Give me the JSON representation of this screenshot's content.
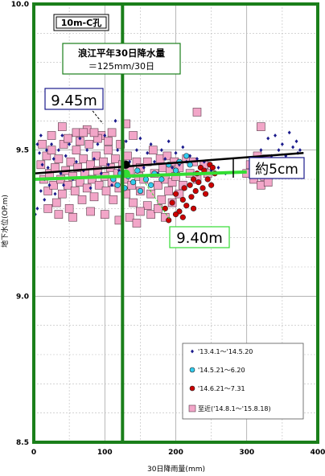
{
  "chart_data": {
    "type": "scatter",
    "title": "10m-C孔",
    "xlabel": "30日降雨量(mm)",
    "ylabel": "地下水位(OP.m)",
    "xlim": [
      0,
      400
    ],
    "ylim": [
      8.5,
      10.0
    ],
    "x_ticks": [
      "0",
      "100",
      "200",
      "300",
      "400"
    ],
    "y_ticks": [
      "8.5",
      "9.0",
      "9.5",
      "10.0"
    ],
    "grid": true,
    "legend_position": "bottom-right",
    "reference_line": {
      "x": 125,
      "label_line1": "浪江平年30日降水量",
      "label_line2": "＝125mm/30日",
      "color": "#1a7f1a"
    },
    "annotations": {
      "high_value": "9.45m",
      "low_value": "9.40m",
      "difference": "約5cm"
    },
    "trend_lines": [
      {
        "name": "black",
        "color": "#000000",
        "points": [
          [
            0,
            9.42
          ],
          [
            380,
            9.49
          ]
        ]
      },
      {
        "name": "green",
        "color": "#33dd33",
        "points": [
          [
            0,
            9.4
          ],
          [
            300,
            9.425
          ]
        ]
      }
    ],
    "highlight_points": [
      {
        "x": 130,
        "y": 9.45,
        "color": "#000000"
      },
      {
        "x": 130,
        "y": 9.42,
        "color": "#33dd33"
      }
    ],
    "series": [
      {
        "name": "'13.4.1～'14.5.20",
        "marker": "diamond",
        "color": "#1a1a8c",
        "points": [
          [
            5,
            9.52
          ],
          [
            8,
            9.49
          ],
          [
            10,
            9.55
          ],
          [
            12,
            9.45
          ],
          [
            15,
            9.4
          ],
          [
            18,
            9.5
          ],
          [
            20,
            9.44
          ],
          [
            22,
            9.38
          ],
          [
            25,
            9.52
          ],
          [
            28,
            9.47
          ],
          [
            30,
            9.35
          ],
          [
            35,
            9.5
          ],
          [
            38,
            9.42
          ],
          [
            40,
            9.55
          ],
          [
            42,
            9.38
          ],
          [
            45,
            9.48
          ],
          [
            50,
            9.52
          ],
          [
            55,
            9.4
          ],
          [
            60,
            9.46
          ],
          [
            65,
            9.54
          ],
          [
            70,
            9.43
          ],
          [
            75,
            9.5
          ],
          [
            80,
            9.37
          ],
          [
            85,
            9.47
          ],
          [
            90,
            9.52
          ],
          [
            95,
            9.42
          ],
          [
            100,
            9.55
          ],
          [
            105,
            9.45
          ],
          [
            110,
            9.38
          ],
          [
            115,
            9.6
          ],
          [
            118,
            9.5
          ],
          [
            120,
            9.43
          ],
          [
            125,
            9.48
          ],
          [
            130,
            9.53
          ],
          [
            135,
            9.46
          ],
          [
            140,
            9.41
          ],
          [
            145,
            9.5
          ],
          [
            150,
            9.54
          ],
          [
            155,
            9.44
          ],
          [
            160,
            9.49
          ],
          [
            165,
            9.52
          ],
          [
            170,
            9.46
          ],
          [
            175,
            9.42
          ],
          [
            180,
            9.5
          ],
          [
            185,
            9.47
          ],
          [
            190,
            9.53
          ],
          [
            195,
            9.44
          ],
          [
            200,
            9.49
          ],
          [
            205,
            9.45
          ],
          [
            210,
            9.51
          ],
          [
            215,
            9.46
          ],
          [
            220,
            9.48
          ],
          [
            225,
            9.42
          ],
          [
            230,
            9.47
          ],
          [
            235,
            9.44
          ],
          [
            240,
            9.46
          ],
          [
            250,
            9.43
          ],
          [
            260,
            9.44
          ],
          [
            270,
            9.42
          ],
          [
            320,
            9.5
          ],
          [
            330,
            9.54
          ],
          [
            335,
            9.48
          ],
          [
            340,
            9.55
          ],
          [
            345,
            9.5
          ],
          [
            350,
            9.52
          ],
          [
            355,
            9.48
          ],
          [
            360,
            9.56
          ],
          [
            365,
            9.51
          ],
          [
            370,
            9.53
          ],
          [
            372,
            9.49
          ],
          [
            375,
            9.5
          ],
          [
            2,
            9.28
          ],
          [
            5,
            9.3
          ],
          [
            10,
            9.36
          ],
          [
            15,
            9.33
          ],
          [
            378,
            9.45
          ]
        ]
      },
      {
        "name": "'14.5.21～6.20",
        "marker": "circle",
        "color": "#33ccee",
        "points": [
          [
            112,
            9.4
          ],
          [
            118,
            9.38
          ],
          [
            122,
            9.42
          ],
          [
            128,
            9.37
          ],
          [
            133,
            9.41
          ],
          [
            140,
            9.39
          ],
          [
            146,
            9.43
          ],
          [
            150,
            9.36
          ],
          [
            158,
            9.4
          ],
          [
            165,
            9.38
          ],
          [
            170,
            9.42
          ],
          [
            180,
            9.4
          ],
          [
            190,
            9.45
          ],
          [
            200,
            9.43
          ],
          [
            205,
            9.46
          ],
          [
            215,
            9.48
          ],
          [
            220,
            9.45
          ]
        ]
      },
      {
        "name": "'14.6.21～7.31",
        "marker": "circle",
        "color": "#cc0000",
        "points": [
          [
            185,
            9.3
          ],
          [
            190,
            9.26
          ],
          [
            195,
            9.32
          ],
          [
            200,
            9.35
          ],
          [
            205,
            9.29
          ],
          [
            210,
            9.33
          ],
          [
            212,
            9.37
          ],
          [
            215,
            9.31
          ],
          [
            220,
            9.38
          ],
          [
            222,
            9.34
          ],
          [
            225,
            9.4
          ],
          [
            228,
            9.36
          ],
          [
            230,
            9.42
          ],
          [
            232,
            9.39
          ],
          [
            235,
            9.44
          ],
          [
            238,
            9.37
          ],
          [
            240,
            9.43
          ],
          [
            242,
            9.35
          ],
          [
            245,
            9.4
          ],
          [
            248,
            9.45
          ],
          [
            250,
            9.38
          ],
          [
            252,
            9.44
          ],
          [
            255,
            9.42
          ],
          [
            225,
            9.3
          ],
          [
            200,
            9.28
          ],
          [
            210,
            9.27
          ]
        ]
      },
      {
        "name": "至近('14.8.1～'15.8.18)",
        "marker": "square",
        "color": "#f2a6c8",
        "points": [
          [
            10,
            9.45
          ],
          [
            14,
            9.4
          ],
          [
            18,
            9.48
          ],
          [
            20,
            9.36
          ],
          [
            22,
            9.42
          ],
          [
            25,
            9.5
          ],
          [
            28,
            9.38
          ],
          [
            30,
            9.44
          ],
          [
            32,
            9.32
          ],
          [
            35,
            9.47
          ],
          [
            38,
            9.4
          ],
          [
            40,
            9.35
          ],
          [
            42,
            9.52
          ],
          [
            45,
            9.43
          ],
          [
            48,
            9.38
          ],
          [
            50,
            9.3
          ],
          [
            52,
            9.46
          ],
          [
            55,
            9.41
          ],
          [
            58,
            9.36
          ],
          [
            60,
            9.5
          ],
          [
            62,
            9.44
          ],
          [
            65,
            9.39
          ],
          [
            68,
            9.33
          ],
          [
            70,
            9.47
          ],
          [
            72,
            9.42
          ],
          [
            75,
            9.37
          ],
          [
            78,
            9.52
          ],
          [
            80,
            9.45
          ],
          [
            82,
            9.4
          ],
          [
            85,
            9.34
          ],
          [
            88,
            9.48
          ],
          [
            90,
            9.43
          ],
          [
            92,
            9.38
          ],
          [
            95,
            9.55
          ],
          [
            98,
            9.46
          ],
          [
            100,
            9.41
          ],
          [
            102,
            9.36
          ],
          [
            105,
            9.5
          ],
          [
            108,
            9.44
          ],
          [
            110,
            9.39
          ],
          [
            112,
            9.33
          ],
          [
            115,
            9.47
          ],
          [
            118,
            9.42
          ],
          [
            120,
            9.37
          ],
          [
            122,
            9.52
          ],
          [
            125,
            9.45
          ],
          [
            128,
            9.4
          ],
          [
            130,
            9.35
          ],
          [
            132,
            9.48
          ],
          [
            135,
            9.43
          ],
          [
            138,
            9.38
          ],
          [
            140,
            9.32
          ],
          [
            145,
            9.46
          ],
          [
            148,
            9.41
          ],
          [
            150,
            9.36
          ],
          [
            25,
            9.55
          ],
          [
            40,
            9.58
          ],
          [
            60,
            9.56
          ],
          [
            75,
            9.57
          ],
          [
            90,
            9.54
          ],
          [
            110,
            9.56
          ],
          [
            20,
            9.3
          ],
          [
            35,
            9.28
          ],
          [
            55,
            9.27
          ],
          [
            80,
            9.29
          ],
          [
            100,
            9.28
          ],
          [
            120,
            9.26
          ],
          [
            135,
            9.27
          ],
          [
            145,
            9.25
          ],
          [
            12,
            9.52
          ],
          [
            65,
            9.53
          ],
          [
            85,
            9.56
          ],
          [
            105,
            9.53
          ],
          [
            150,
            9.44
          ],
          [
            155,
            9.4
          ],
          [
            160,
            9.46
          ],
          [
            165,
            9.35
          ],
          [
            168,
            9.5
          ],
          [
            170,
            9.42
          ],
          [
            175,
            9.38
          ],
          [
            178,
            9.47
          ],
          [
            180,
            9.33
          ],
          [
            182,
            9.44
          ],
          [
            185,
            9.4
          ],
          [
            188,
            9.48
          ],
          [
            190,
            9.36
          ],
          [
            192,
            9.43
          ],
          [
            195,
            9.39
          ],
          [
            198,
            9.46
          ],
          [
            200,
            9.41
          ],
          [
            205,
            9.44
          ],
          [
            210,
            9.38
          ],
          [
            215,
            9.47
          ],
          [
            220,
            9.42
          ],
          [
            225,
            9.46
          ],
          [
            230,
            9.4
          ],
          [
            240,
            9.45
          ],
          [
            245,
            9.42
          ],
          [
            165,
            9.28
          ],
          [
            175,
            9.3
          ],
          [
            185,
            9.27
          ],
          [
            160,
            9.31
          ],
          [
            150,
            9.29
          ],
          [
            195,
            9.32
          ],
          [
            205,
            9.35
          ],
          [
            230,
            9.63
          ],
          [
            300,
            9.42
          ],
          [
            305,
            9.45
          ],
          [
            310,
            9.4
          ],
          [
            315,
            9.48
          ],
          [
            318,
            9.43
          ],
          [
            320,
            9.38
          ],
          [
            322,
            9.45
          ],
          [
            325,
            9.41
          ],
          [
            328,
            9.47
          ],
          [
            330,
            9.39
          ],
          [
            332,
            9.44
          ],
          [
            335,
            9.42
          ],
          [
            338,
            9.46
          ],
          [
            340,
            9.43
          ],
          [
            320,
            9.58
          ],
          [
            140,
            9.55
          ],
          [
            130,
            9.59
          ],
          [
            48,
            9.54
          ],
          [
            70,
            9.56
          ]
        ]
      }
    ]
  }
}
